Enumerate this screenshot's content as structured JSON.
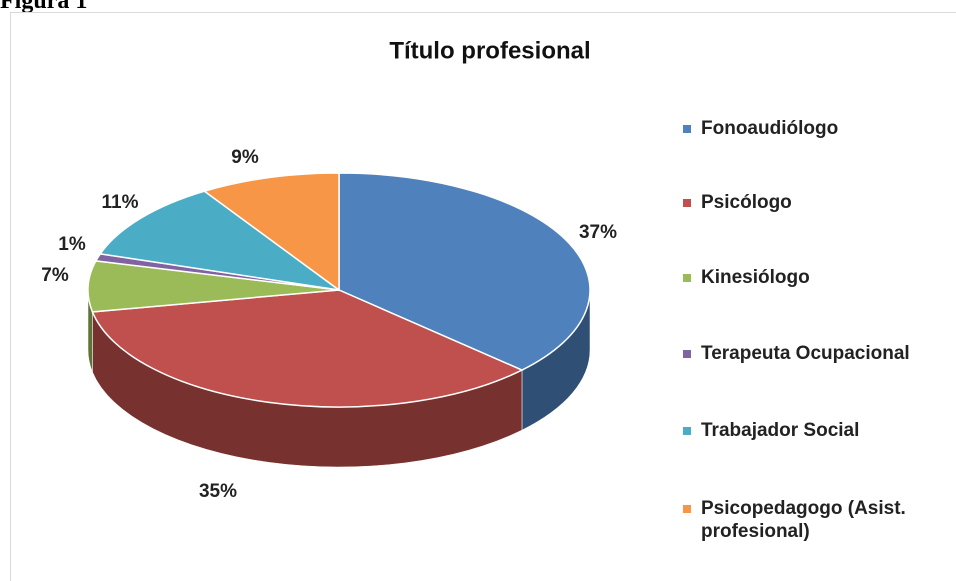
{
  "figure_label": "Figura 1",
  "chart_data": {
    "type": "pie",
    "title": "Título profesional",
    "categories": [
      "Fonoaudiólogo",
      "Psicólogo",
      "Kinesiólogo",
      "Terapeuta Ocupacional",
      "Trabajador Social",
      "Psicopedagogo (Asist. profesional)"
    ],
    "values": [
      37,
      35,
      7,
      1,
      11,
      9
    ],
    "value_labels": [
      "37%",
      "35%",
      "7%",
      "1%",
      "11%",
      "9%"
    ],
    "colors": [
      "#4f81bd",
      "#c0504d",
      "#9bbb59",
      "#8064a2",
      "#4bacc6",
      "#f79646"
    ],
    "legend": "right"
  }
}
